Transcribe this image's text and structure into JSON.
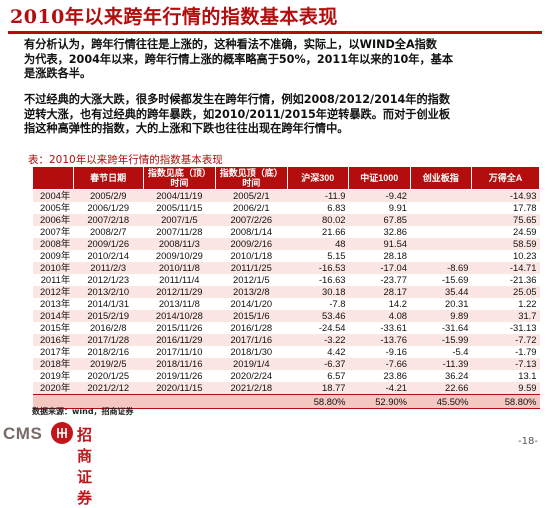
{
  "title": "2010年以来跨年行情的指数基本表现",
  "para1": [
    "有分析认为，跨年行情往往是上涨的，这种看法不准确，实际上，以WIND全A指数",
    "为代表，2004年以来，跨年行情上涨的概率略高于50%，2011年以来的10年，基本",
    "是涨跌各半。"
  ],
  "para2": [
    "不过经典的大涨大跌，很多时候都发生在跨年行情，例如2008/2012/2014年的指数",
    "逆转大涨，也有过经典的跨年暴跌，如2010/2011/2015年逆转暴跌。而对于创业板",
    "指这种高弹性的指数，大的上涨和下跌也往往出现在跨年行情中。"
  ],
  "caption": "表：2010年以来跨年行情的指数基本表现",
  "table": {
    "headers": [
      "",
      "春节日期",
      "指数见底（顶）时间",
      "指数见顶（底）时间",
      "沪深300",
      "中证1000",
      "创业板指",
      "万得全A"
    ],
    "rows": [
      [
        "2004年",
        "2005/2/9",
        "2004/11/19",
        "2005/2/1",
        "-11.9",
        "-9.42",
        "",
        "-14.93"
      ],
      [
        "2005年",
        "2006/1/29",
        "2005/11/15",
        "2006/2/1",
        "6.83",
        "9.91",
        "",
        "17.78"
      ],
      [
        "2006年",
        "2007/2/18",
        "2007/1/5",
        "2007/2/26",
        "80.02",
        "67.85",
        "",
        "75.65"
      ],
      [
        "2007年",
        "2008/2/7",
        "2007/11/28",
        "2008/1/14",
        "21.66",
        "32.86",
        "",
        "24.59"
      ],
      [
        "2008年",
        "2009/1/26",
        "2008/11/3",
        "2009/2/16",
        "48",
        "91.54",
        "",
        "58.59"
      ],
      [
        "2009年",
        "2010/2/14",
        "2009/10/29",
        "2010/1/18",
        "5.15",
        "28.18",
        "",
        "10.23"
      ],
      [
        "2010年",
        "2011/2/3",
        "2010/11/8",
        "2011/1/25",
        "-16.53",
        "-17.04",
        "-8.69",
        "-14.71"
      ],
      [
        "2011年",
        "2012/1/23",
        "2011/11/4",
        "2012/1/5",
        "-16.63",
        "-23.77",
        "-15.69",
        "-21.36"
      ],
      [
        "2012年",
        "2013/2/10",
        "2012/11/29",
        "2013/2/8",
        "30.18",
        "28.17",
        "35.44",
        "25.05"
      ],
      [
        "2013年",
        "2014/1/31",
        "2013/11/8",
        "2014/1/20",
        "-7.8",
        "14.2",
        "20.31",
        "1.22"
      ],
      [
        "2014年",
        "2015/2/19",
        "2014/10/28",
        "2015/1/6",
        "53.46",
        "4.08",
        "9.89",
        "31.7"
      ],
      [
        "2015年",
        "2016/2/8",
        "2015/11/26",
        "2016/1/28",
        "-24.54",
        "-33.61",
        "-31.64",
        "-31.13"
      ],
      [
        "2016年",
        "2017/1/28",
        "2016/11/29",
        "2017/1/16",
        "-3.22",
        "-13.76",
        "-15.99",
        "-7.72"
      ],
      [
        "2017年",
        "2018/2/16",
        "2017/11/10",
        "2018/1/30",
        "4.42",
        "-9.16",
        "-5.4",
        "-1.79"
      ],
      [
        "2018年",
        "2019/2/5",
        "2018/11/16",
        "2019/1/4",
        "-6.37",
        "-7.66",
        "-11.39",
        "-7.13"
      ],
      [
        "2019年",
        "2020/1/25",
        "2019/11/26",
        "2020/2/24",
        "6.57",
        "23.86",
        "36.24",
        "13.1"
      ],
      [
        "2020年",
        "2021/2/12",
        "2020/11/15",
        "2021/2/18",
        "18.77",
        "-4.21",
        "22.66",
        "9.59"
      ]
    ],
    "footer": [
      "",
      "",
      "",
      "",
      "58.80%",
      "52.90%",
      "45.50%",
      "58.80%"
    ]
  },
  "source": "数据来源：wind，招商证券",
  "logo": {
    "text": "CMS",
    "cn": "招商证券"
  },
  "page_number": "-18-",
  "colors": {
    "accent": "#b30d0d",
    "row_odd": "#fbe6e3",
    "footer": "#f4c7c1"
  }
}
